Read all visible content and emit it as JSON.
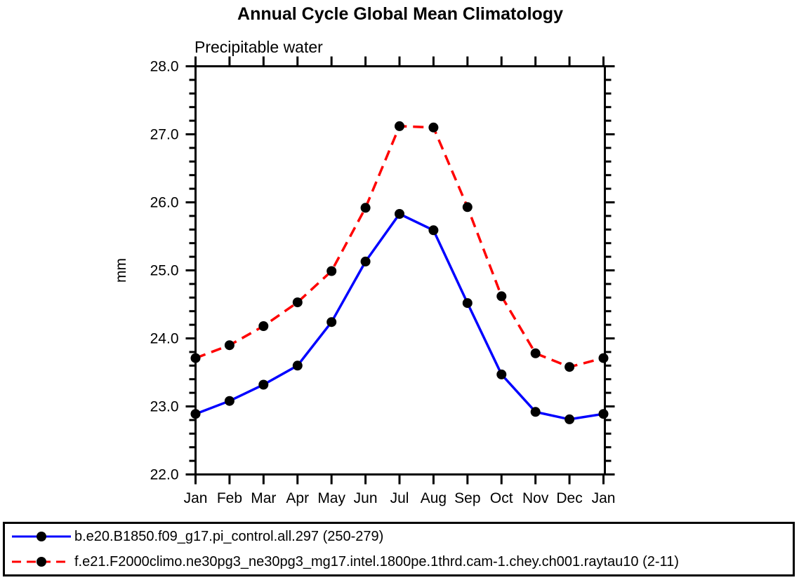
{
  "chart_data": {
    "type": "line",
    "title": "Annual Cycle Global Mean Climatology",
    "subtitle": "Precipitable water",
    "ylabel": "mm",
    "ylim": [
      22.0,
      28.0
    ],
    "y_major_step": 1.0,
    "y_minor_step": 0.2,
    "y_tick_labels": [
      "22.0",
      "23.0",
      "24.0",
      "25.0",
      "26.0",
      "27.0",
      "28.0"
    ],
    "categories": [
      "Jan",
      "Feb",
      "Mar",
      "Apr",
      "May",
      "Jun",
      "Jul",
      "Aug",
      "Sep",
      "Oct",
      "Nov",
      "Dec",
      "Jan"
    ],
    "grid": false,
    "legend_position": "bottom-box",
    "frame_color": "#000000",
    "series": [
      {
        "name": "b.e20.B1850.f09_g17.pi_control.all.297 (250-279)",
        "color": "#0000ff",
        "line_style": "solid",
        "marker": "filled-circle",
        "marker_color": "#000000",
        "values": [
          22.89,
          23.08,
          23.32,
          23.6,
          24.24,
          25.13,
          25.83,
          25.59,
          24.52,
          23.47,
          22.92,
          22.81,
          22.89
        ]
      },
      {
        "name": "f.e21.F2000climo.ne30pg3_ne30pg3_mg17.intel.1800pe.1thrd.cam-1.chey.ch001.raytau10 (2-11)",
        "color": "#ff0000",
        "line_style": "dashed",
        "marker": "filled-circle",
        "marker_color": "#000000",
        "values": [
          23.71,
          23.9,
          24.18,
          24.53,
          24.99,
          25.92,
          27.12,
          27.1,
          25.93,
          24.62,
          23.78,
          23.58,
          23.71
        ]
      }
    ]
  }
}
